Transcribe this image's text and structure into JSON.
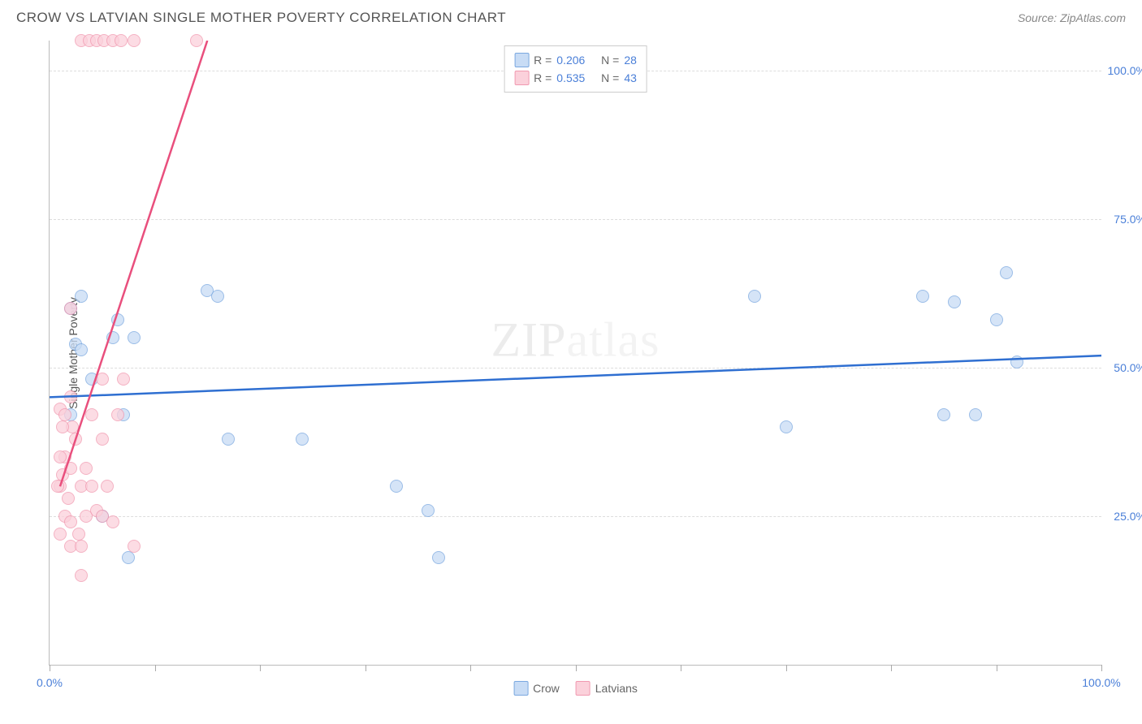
{
  "title": "CROW VS LATVIAN SINGLE MOTHER POVERTY CORRELATION CHART",
  "source": "Source: ZipAtlas.com",
  "watermark": {
    "zip": "ZIP",
    "atlas": "atlas"
  },
  "chart": {
    "type": "scatter",
    "xlim": [
      0,
      100
    ],
    "ylim": [
      0,
      105
    ],
    "ylabel": "Single Mother Poverty",
    "yticks": [
      25.0,
      50.0,
      75.0,
      100.0
    ],
    "ytick_labels": [
      "25.0%",
      "50.0%",
      "75.0%",
      "100.0%"
    ],
    "xticks": [
      0,
      10,
      20,
      30,
      40,
      50,
      60,
      70,
      80,
      90,
      100
    ],
    "xtick_labels_shown": {
      "0": "0.0%",
      "100": "100.0%"
    },
    "background_color": "#ffffff",
    "grid_color": "#dddddd",
    "axis_color": "#bbbbbb",
    "tick_label_color": "#4a7fd8",
    "marker_radius": 8,
    "marker_opacity": 0.75,
    "series": [
      {
        "name": "Crow",
        "fill_color": "#c8dcf5",
        "stroke_color": "#7aa8e0",
        "line_color": "#2f6fd1",
        "R": "0.206",
        "N": "28",
        "trend": {
          "x1": 0,
          "y1": 45,
          "x2": 100,
          "y2": 52
        },
        "points": [
          {
            "x": 2,
            "y": 60
          },
          {
            "x": 3,
            "y": 62
          },
          {
            "x": 2.5,
            "y": 54
          },
          {
            "x": 3,
            "y": 53
          },
          {
            "x": 4,
            "y": 48
          },
          {
            "x": 6,
            "y": 55
          },
          {
            "x": 6.5,
            "y": 58
          },
          {
            "x": 8,
            "y": 55
          },
          {
            "x": 7,
            "y": 42
          },
          {
            "x": 7.5,
            "y": 18
          },
          {
            "x": 15,
            "y": 63
          },
          {
            "x": 16,
            "y": 62
          },
          {
            "x": 17,
            "y": 38
          },
          {
            "x": 24,
            "y": 38
          },
          {
            "x": 33,
            "y": 30
          },
          {
            "x": 36,
            "y": 26
          },
          {
            "x": 37,
            "y": 18
          },
          {
            "x": 67,
            "y": 62
          },
          {
            "x": 70,
            "y": 40
          },
          {
            "x": 83,
            "y": 62
          },
          {
            "x": 85,
            "y": 42
          },
          {
            "x": 86,
            "y": 61
          },
          {
            "x": 88,
            "y": 42
          },
          {
            "x": 90,
            "y": 58
          },
          {
            "x": 91,
            "y": 66
          },
          {
            "x": 92,
            "y": 51
          },
          {
            "x": 5,
            "y": 25
          },
          {
            "x": 2,
            "y": 42
          }
        ]
      },
      {
        "name": "Latvians",
        "fill_color": "#fbd1db",
        "stroke_color": "#f199b0",
        "line_color": "#e94f7d",
        "R": "0.535",
        "N": "43",
        "trend": {
          "x1": 1,
          "y1": 30,
          "x2": 15,
          "y2": 105
        },
        "points": [
          {
            "x": 1,
            "y": 30
          },
          {
            "x": 1.2,
            "y": 32
          },
          {
            "x": 1.5,
            "y": 35
          },
          {
            "x": 1.8,
            "y": 28
          },
          {
            "x": 2,
            "y": 33
          },
          {
            "x": 2.2,
            "y": 40
          },
          {
            "x": 2.5,
            "y": 38
          },
          {
            "x": 2,
            "y": 45
          },
          {
            "x": 1.5,
            "y": 25
          },
          {
            "x": 1,
            "y": 22
          },
          {
            "x": 2,
            "y": 24
          },
          {
            "x": 2.8,
            "y": 22
          },
          {
            "x": 3,
            "y": 30
          },
          {
            "x": 3.5,
            "y": 33
          },
          {
            "x": 4,
            "y": 42
          },
          {
            "x": 4.5,
            "y": 26
          },
          {
            "x": 5,
            "y": 38
          },
          {
            "x": 5,
            "y": 48
          },
          {
            "x": 5,
            "y": 25
          },
          {
            "x": 5.5,
            "y": 30
          },
          {
            "x": 6,
            "y": 24
          },
          {
            "x": 6.5,
            "y": 42
          },
          {
            "x": 7,
            "y": 48
          },
          {
            "x": 8,
            "y": 20
          },
          {
            "x": 2,
            "y": 60
          },
          {
            "x": 1,
            "y": 43
          },
          {
            "x": 1.2,
            "y": 40
          },
          {
            "x": 1.5,
            "y": 42
          },
          {
            "x": 1,
            "y": 35
          },
          {
            "x": 0.8,
            "y": 30
          },
          {
            "x": 2,
            "y": 20
          },
          {
            "x": 3,
            "y": 20
          },
          {
            "x": 3.5,
            "y": 25
          },
          {
            "x": 4,
            "y": 30
          },
          {
            "x": 3,
            "y": 15
          },
          {
            "x": 3,
            "y": 105
          },
          {
            "x": 3.8,
            "y": 105
          },
          {
            "x": 4.5,
            "y": 105
          },
          {
            "x": 5.2,
            "y": 105
          },
          {
            "x": 6,
            "y": 105
          },
          {
            "x": 6.8,
            "y": 105
          },
          {
            "x": 8,
            "y": 105
          },
          {
            "x": 14,
            "y": 105
          }
        ]
      }
    ],
    "legend_top": {
      "rows": [
        {
          "swatch_fill": "#c8dcf5",
          "swatch_stroke": "#7aa8e0",
          "r_label": "R =",
          "r_val": "0.206",
          "n_label": "N =",
          "n_val": "28"
        },
        {
          "swatch_fill": "#fbd1db",
          "swatch_stroke": "#f199b0",
          "r_label": "R =",
          "r_val": "0.535",
          "n_label": "N =",
          "n_val": "43"
        }
      ]
    },
    "legend_bottom": [
      {
        "label": "Crow",
        "fill": "#c8dcf5",
        "stroke": "#7aa8e0"
      },
      {
        "label": "Latvians",
        "fill": "#fbd1db",
        "stroke": "#f199b0"
      }
    ]
  }
}
